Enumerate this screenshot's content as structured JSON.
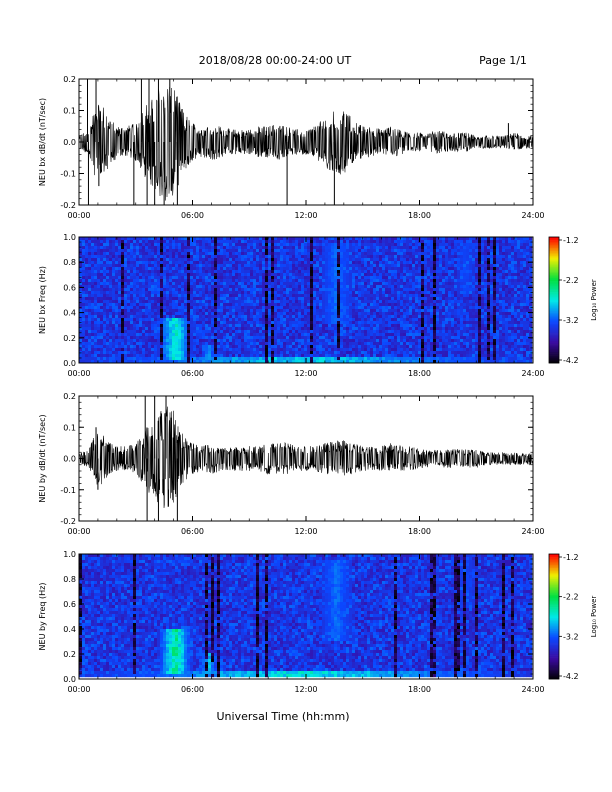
{
  "header": {
    "date_range": "2018/08/28  00:00-24:00 UT",
    "page": "Page 1/1"
  },
  "xlabel": "Universal Time (hh:mm)",
  "x_tick_labels": [
    "00:00",
    "06:00",
    "12:00",
    "18:00",
    "24:00"
  ],
  "colorbar": {
    "label": "Log₁₀ Power",
    "tick_labels": [
      "-1.2",
      "-2.2",
      "-3.2",
      "-4.2"
    ],
    "range": [
      -4.2,
      -1.2
    ],
    "colors": [
      "#000000",
      "#3a0aa0",
      "#0b48ff",
      "#00e8e8",
      "#00e040",
      "#f0f000",
      "#ff0000"
    ]
  },
  "chart_data": [
    {
      "type": "line",
      "ylabel": "NEU bx dB/dt (nT/sec)",
      "y_tick_labels": [
        "0.2",
        "0.1",
        "0.0",
        "-0.1",
        "-0.2"
      ],
      "ylim": [
        -0.2,
        0.2
      ],
      "xlim": [
        0,
        24
      ],
      "x_unit": "hours UT",
      "envelope": {
        "x": [
          0,
          0.5,
          1,
          1.5,
          2,
          2.5,
          3,
          3.5,
          4,
          4.5,
          5,
          5.5,
          6,
          6.5,
          7,
          7.5,
          8,
          8.5,
          9,
          9.5,
          10,
          10.5,
          11,
          11.5,
          12,
          12.5,
          13,
          13.5,
          14,
          14.5,
          15,
          15.5,
          16,
          16.5,
          17,
          17.5,
          18,
          18.5,
          19,
          19.5,
          20,
          20.5,
          21,
          21.5,
          22,
          22.5,
          23,
          23.5,
          24
        ],
        "amplitude": [
          0.02,
          0.04,
          0.14,
          0.09,
          0.05,
          0.05,
          0.06,
          0.12,
          0.15,
          0.2,
          0.18,
          0.1,
          0.06,
          0.05,
          0.06,
          0.05,
          0.04,
          0.04,
          0.04,
          0.05,
          0.05,
          0.06,
          0.05,
          0.04,
          0.04,
          0.05,
          0.08,
          0.1,
          0.11,
          0.07,
          0.05,
          0.05,
          0.04,
          0.05,
          0.04,
          0.03,
          0.03,
          0.03,
          0.04,
          0.03,
          0.03,
          0.03,
          0.02,
          0.02,
          0.02,
          0.02,
          0.03,
          0.02,
          0.02
        ]
      },
      "spikes": [
        {
          "x": 0.45,
          "y": 0.2
        },
        {
          "x": 0.5,
          "y": -0.2
        },
        {
          "x": 0.9,
          "y": 0.2
        },
        {
          "x": 1.05,
          "y": -0.14
        },
        {
          "x": 2.9,
          "y": -0.2
        },
        {
          "x": 3.3,
          "y": 0.2
        },
        {
          "x": 3.6,
          "y": -0.2
        },
        {
          "x": 3.7,
          "y": 0.2
        },
        {
          "x": 4.0,
          "y": -0.2
        },
        {
          "x": 4.2,
          "y": 0.2
        },
        {
          "x": 4.5,
          "y": -0.2
        },
        {
          "x": 4.8,
          "y": 0.2
        },
        {
          "x": 5.2,
          "y": -0.2
        },
        {
          "x": 11.0,
          "y": -0.2
        },
        {
          "x": 13.5,
          "y": -0.2
        },
        {
          "x": 22.7,
          "y": 0.06
        }
      ]
    },
    {
      "type": "heatmap",
      "ylabel": "NEU bx Freq (Hz)",
      "y_tick_labels": [
        "1.0",
        "0.8",
        "0.6",
        "0.4",
        "0.2",
        "0.0"
      ],
      "ylim": [
        0,
        1
      ],
      "xlim": [
        0,
        24
      ],
      "z_range": [
        -4.2,
        -1.2
      ],
      "features": [
        {
          "x": [
            4.2,
            6.0
          ],
          "y": [
            0.02,
            0.35
          ],
          "z": -2.4
        },
        {
          "x": [
            6.5,
            7.2
          ],
          "y": [
            0.02,
            0.15
          ],
          "z": -2.8
        },
        {
          "x": [
            0,
            24
          ],
          "y": [
            0.0,
            0.05
          ],
          "z": -2.6
        },
        {
          "x": [
            12.8,
            14.5
          ],
          "y": [
            0.3,
            0.95
          ],
          "z": -3.0
        },
        {
          "x": [
            20.0,
            21.0
          ],
          "y": [
            0.55,
            0.95
          ],
          "z": -3.2
        }
      ]
    },
    {
      "type": "line",
      "ylabel": "NEU by dB/dt (nT/sec)",
      "y_tick_labels": [
        "0.2",
        "0.1",
        "0.0",
        "-0.1",
        "-0.2"
      ],
      "ylim": [
        -0.2,
        0.2
      ],
      "xlim": [
        0,
        24
      ],
      "x_unit": "hours UT",
      "envelope": {
        "x": [
          0,
          0.5,
          1,
          1.5,
          2,
          2.5,
          3,
          3.5,
          4,
          4.5,
          5,
          5.5,
          6,
          6.5,
          7,
          7.5,
          8,
          8.5,
          9,
          9.5,
          10,
          10.5,
          11,
          11.5,
          12,
          12.5,
          13,
          13.5,
          14,
          14.5,
          15,
          15.5,
          16,
          16.5,
          17,
          17.5,
          18,
          18.5,
          19,
          19.5,
          20,
          20.5,
          21,
          21.5,
          22,
          22.5,
          23,
          23.5,
          24
        ],
        "amplitude": [
          0.02,
          0.03,
          0.1,
          0.06,
          0.04,
          0.04,
          0.05,
          0.1,
          0.13,
          0.17,
          0.16,
          0.08,
          0.05,
          0.04,
          0.05,
          0.04,
          0.04,
          0.04,
          0.04,
          0.04,
          0.05,
          0.05,
          0.05,
          0.04,
          0.04,
          0.04,
          0.05,
          0.06,
          0.06,
          0.05,
          0.04,
          0.04,
          0.04,
          0.05,
          0.04,
          0.04,
          0.03,
          0.03,
          0.03,
          0.03,
          0.03,
          0.03,
          0.03,
          0.02,
          0.02,
          0.02,
          0.02,
          0.02,
          0.02
        ]
      },
      "spikes": [
        {
          "x": 0.9,
          "y": 0.1
        },
        {
          "x": 1.0,
          "y": -0.1
        },
        {
          "x": 3.5,
          "y": 0.2
        },
        {
          "x": 3.6,
          "y": -0.2
        },
        {
          "x": 4.0,
          "y": 0.2
        },
        {
          "x": 4.2,
          "y": -0.2
        },
        {
          "x": 4.6,
          "y": 0.2
        },
        {
          "x": 5.2,
          "y": -0.2
        }
      ]
    },
    {
      "type": "heatmap",
      "ylabel": "NEU by Freq (Hz)",
      "y_tick_labels": [
        "1.0",
        "0.8",
        "0.6",
        "0.4",
        "0.2",
        "0.0"
      ],
      "ylim": [
        0,
        1
      ],
      "xlim": [
        0,
        24
      ],
      "z_range": [
        -4.2,
        -1.2
      ],
      "features": [
        {
          "x": [
            4.2,
            6.0
          ],
          "y": [
            0.02,
            0.4
          ],
          "z": -2.2
        },
        {
          "x": [
            6.4,
            7.3
          ],
          "y": [
            0.02,
            0.2
          ],
          "z": -2.6
        },
        {
          "x": [
            0,
            24
          ],
          "y": [
            0.0,
            0.05
          ],
          "z": -2.5
        },
        {
          "x": [
            12.8,
            14.5
          ],
          "y": [
            0.3,
            0.95
          ],
          "z": -3.0
        },
        {
          "x": [
            20.0,
            21.0
          ],
          "y": [
            0.55,
            0.95
          ],
          "z": -3.2
        }
      ]
    }
  ]
}
